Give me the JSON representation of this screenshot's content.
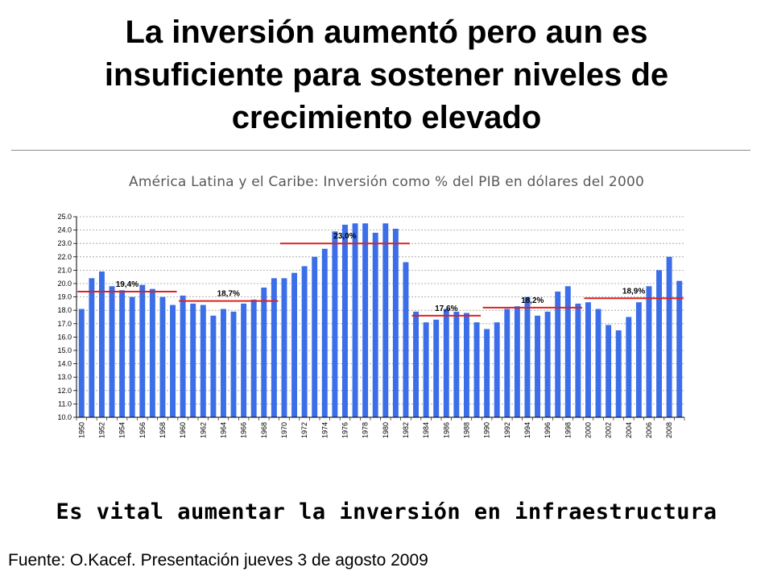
{
  "slide": {
    "title_lines": [
      "La inversión aumentó pero aun es",
      "insuficiente para sostener niveles de",
      "crecimiento elevado"
    ],
    "conclusion": "Es vital aumentar la inversión en infraestructura",
    "source": "Fuente: O.Kacef. Presentación jueves 3 de agosto 2009"
  },
  "chart_data": {
    "type": "bar",
    "title": "América Latina y el Caribe: Inversión como % del PIB en dólares del 2000",
    "xlabel": "",
    "ylabel": "",
    "ylim": [
      10.0,
      25.0
    ],
    "ystep": 1.0,
    "grid": true,
    "bar_color": "#3b6ee8",
    "avg_line_color": "#e02020",
    "categories": [
      "1950",
      "1951",
      "1952",
      "1953",
      "1954",
      "1955",
      "1956",
      "1957",
      "1958",
      "1959",
      "1960",
      "1961",
      "1962",
      "1963",
      "1964",
      "1965",
      "1966",
      "1967",
      "1968",
      "1969",
      "1970",
      "1971",
      "1972",
      "1973",
      "1974",
      "1975",
      "1976",
      "1977",
      "1978",
      "1979",
      "1980",
      "1981",
      "1982",
      "1983",
      "1984",
      "1985",
      "1986",
      "1987",
      "1988",
      "1989",
      "1990",
      "1991",
      "1992",
      "1993",
      "1994",
      "1995",
      "1996",
      "1997",
      "1998",
      "1999",
      "2000",
      "2001",
      "2002",
      "2003",
      "2004",
      "2005",
      "2006",
      "2007",
      "2008",
      "2009"
    ],
    "tick_labels": [
      "1950",
      "",
      "1952",
      "",
      "1954",
      "",
      "1956",
      "",
      "1958",
      "",
      "1960",
      "",
      "1962",
      "",
      "1964",
      "",
      "1966",
      "",
      "1968",
      "",
      "1970",
      "",
      "1972",
      "",
      "1974",
      "",
      "1976",
      "",
      "1978",
      "",
      "1980",
      "",
      "1982",
      "",
      "1984",
      "",
      "1986",
      "",
      "1988",
      "",
      "1990",
      "",
      "1992",
      "",
      "1994",
      "",
      "1996",
      "",
      "1998",
      "",
      "2000",
      "",
      "2002",
      "",
      "2004",
      "",
      "2006",
      "",
      "2008",
      ""
    ],
    "values": [
      18.1,
      20.4,
      20.9,
      19.8,
      19.5,
      19.0,
      19.9,
      19.6,
      19.0,
      18.4,
      19.1,
      18.5,
      18.4,
      17.6,
      18.1,
      17.9,
      18.5,
      18.8,
      19.7,
      20.4,
      20.4,
      20.8,
      21.3,
      22.0,
      22.6,
      23.9,
      24.4,
      24.5,
      24.5,
      23.8,
      24.5,
      24.1,
      21.6,
      17.9,
      17.1,
      17.3,
      18.1,
      17.9,
      17.8,
      17.1,
      16.6,
      17.1,
      18.1,
      18.3,
      19.0,
      17.6,
      17.9,
      19.4,
      19.8,
      18.5,
      18.6,
      18.1,
      16.9,
      16.5,
      17.5,
      18.6,
      19.8,
      21.0,
      22.0,
      20.2
    ],
    "period_averages": [
      {
        "label": "19,4%",
        "value": 19.4,
        "from": "1950",
        "to": "1959"
      },
      {
        "label": "18,7%",
        "value": 18.7,
        "from": "1960",
        "to": "1969"
      },
      {
        "label": "23,0%",
        "value": 23.0,
        "from": "1970",
        "to": "1982"
      },
      {
        "label": "17,6%",
        "value": 17.6,
        "from": "1983",
        "to": "1989"
      },
      {
        "label": "18,2%",
        "value": 18.2,
        "from": "1990",
        "to": "1999"
      },
      {
        "label": "18,9%",
        "value": 18.9,
        "from": "2000",
        "to": "2009"
      }
    ]
  }
}
